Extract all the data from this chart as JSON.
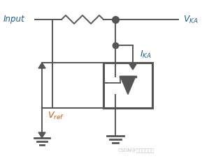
{
  "bg_color": "#ffffff",
  "line_color": "#555555",
  "label_color_blue": "#1f5c8b",
  "label_color_orange": "#c55a11",
  "watermark_color": "#bbbbbb",
  "watermark": "CSDN@一口吃俩胖子"
}
